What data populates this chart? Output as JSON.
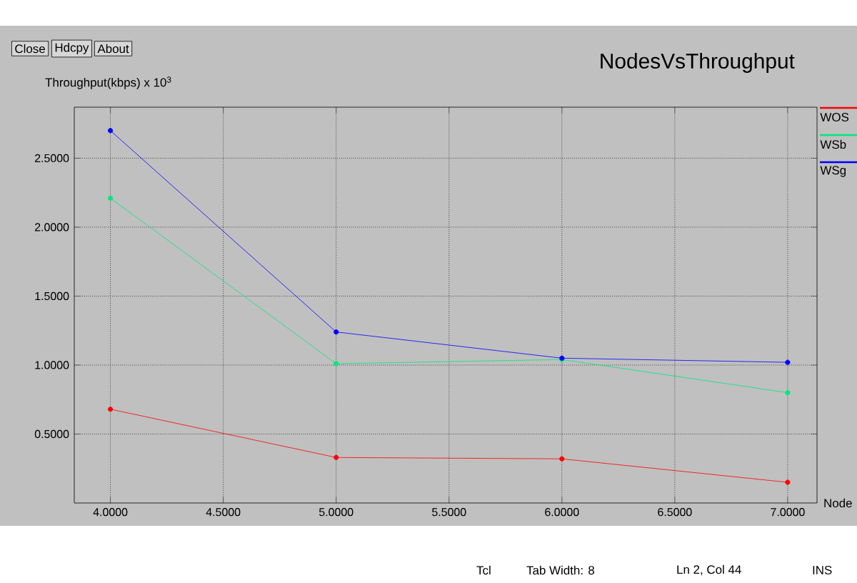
{
  "chart_data": {
    "type": "line",
    "title": "NodesVsThroughput",
    "xlabel": "Node",
    "ylabel": "Throughput(kbps) x 10$^{3}$",
    "x": [
      4,
      5,
      6,
      7
    ],
    "series": [
      {
        "name": "WOS",
        "color": "#ff0000",
        "values": [
          0.68,
          0.33,
          0.32,
          0.15
        ]
      },
      {
        "name": "WSb",
        "color": "#00e87a",
        "values": [
          2.21,
          1.01,
          1.04,
          0.8
        ]
      },
      {
        "name": "WSg",
        "color": "#0000ff",
        "values": [
          2.7,
          1.24,
          1.05,
          1.02
        ]
      }
    ],
    "xlim": [
      3.84,
      7.13
    ],
    "ylim": [
      0,
      2.87
    ],
    "xticks": [
      {
        "value": 4,
        "label": "4.0000"
      },
      {
        "value": 4.5,
        "label": "4.5000"
      },
      {
        "value": 5,
        "label": "5.0000"
      },
      {
        "value": 5.5,
        "label": "5.5000"
      },
      {
        "value": 6,
        "label": "6.0000"
      },
      {
        "value": 6.5,
        "label": "6.5000"
      },
      {
        "value": 7,
        "label": "7.0000"
      }
    ],
    "yticks": [
      {
        "value": 0.5,
        "label": "0.5000"
      },
      {
        "value": 1,
        "label": "1.0000"
      },
      {
        "value": 1.5,
        "label": "1.5000"
      },
      {
        "value": 2,
        "label": "2.0000"
      },
      {
        "value": 2.5,
        "label": "2.5000"
      }
    ],
    "grid": true,
    "legend": "right",
    "marker": "circle",
    "line_style": "solid",
    "annotations": [
      "Close",
      "Hdcpy",
      "About",
      "Tcl",
      "Tab Width: 8",
      "Ln 2, Col 44",
      "INS"
    ]
  }
}
